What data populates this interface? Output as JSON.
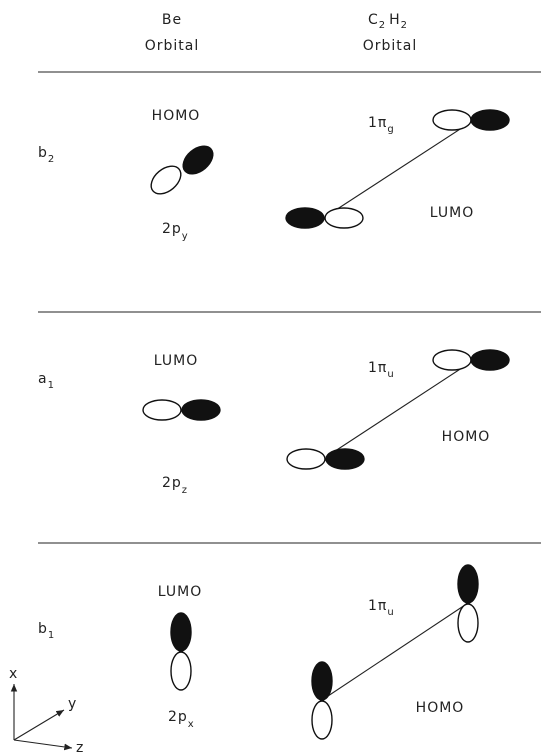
{
  "headers": {
    "be": {
      "line1": "Be",
      "line2": "Orbital"
    },
    "c2h2": {
      "c": "C",
      "c_sub": "2",
      "h": "H",
      "h_sub": "2",
      "line2": "Orbital"
    }
  },
  "rows": [
    {
      "symmetry": "b",
      "symmetry_sub": "2",
      "be_label": "HOMO",
      "be_orbital": "2p",
      "be_orbital_sub": "y",
      "c2h2_orbital": "1π",
      "c2h2_orbital_sub": "g",
      "c2h2_label": "LUMO"
    },
    {
      "symmetry": "a",
      "symmetry_sub": "1",
      "be_label": "LUMO",
      "be_orbital": "2p",
      "be_orbital_sub": "z",
      "c2h2_orbital": "1π",
      "c2h2_orbital_sub": "u",
      "c2h2_label": "HOMO"
    },
    {
      "symmetry": "b",
      "symmetry_sub": "1",
      "be_label": "LUMO",
      "be_orbital": "2p",
      "be_orbital_sub": "x",
      "c2h2_orbital": "1π",
      "c2h2_orbital_sub": "u",
      "c2h2_label": "HOMO"
    }
  ],
  "axes": {
    "x": "x",
    "y": "y",
    "z": "z"
  }
}
